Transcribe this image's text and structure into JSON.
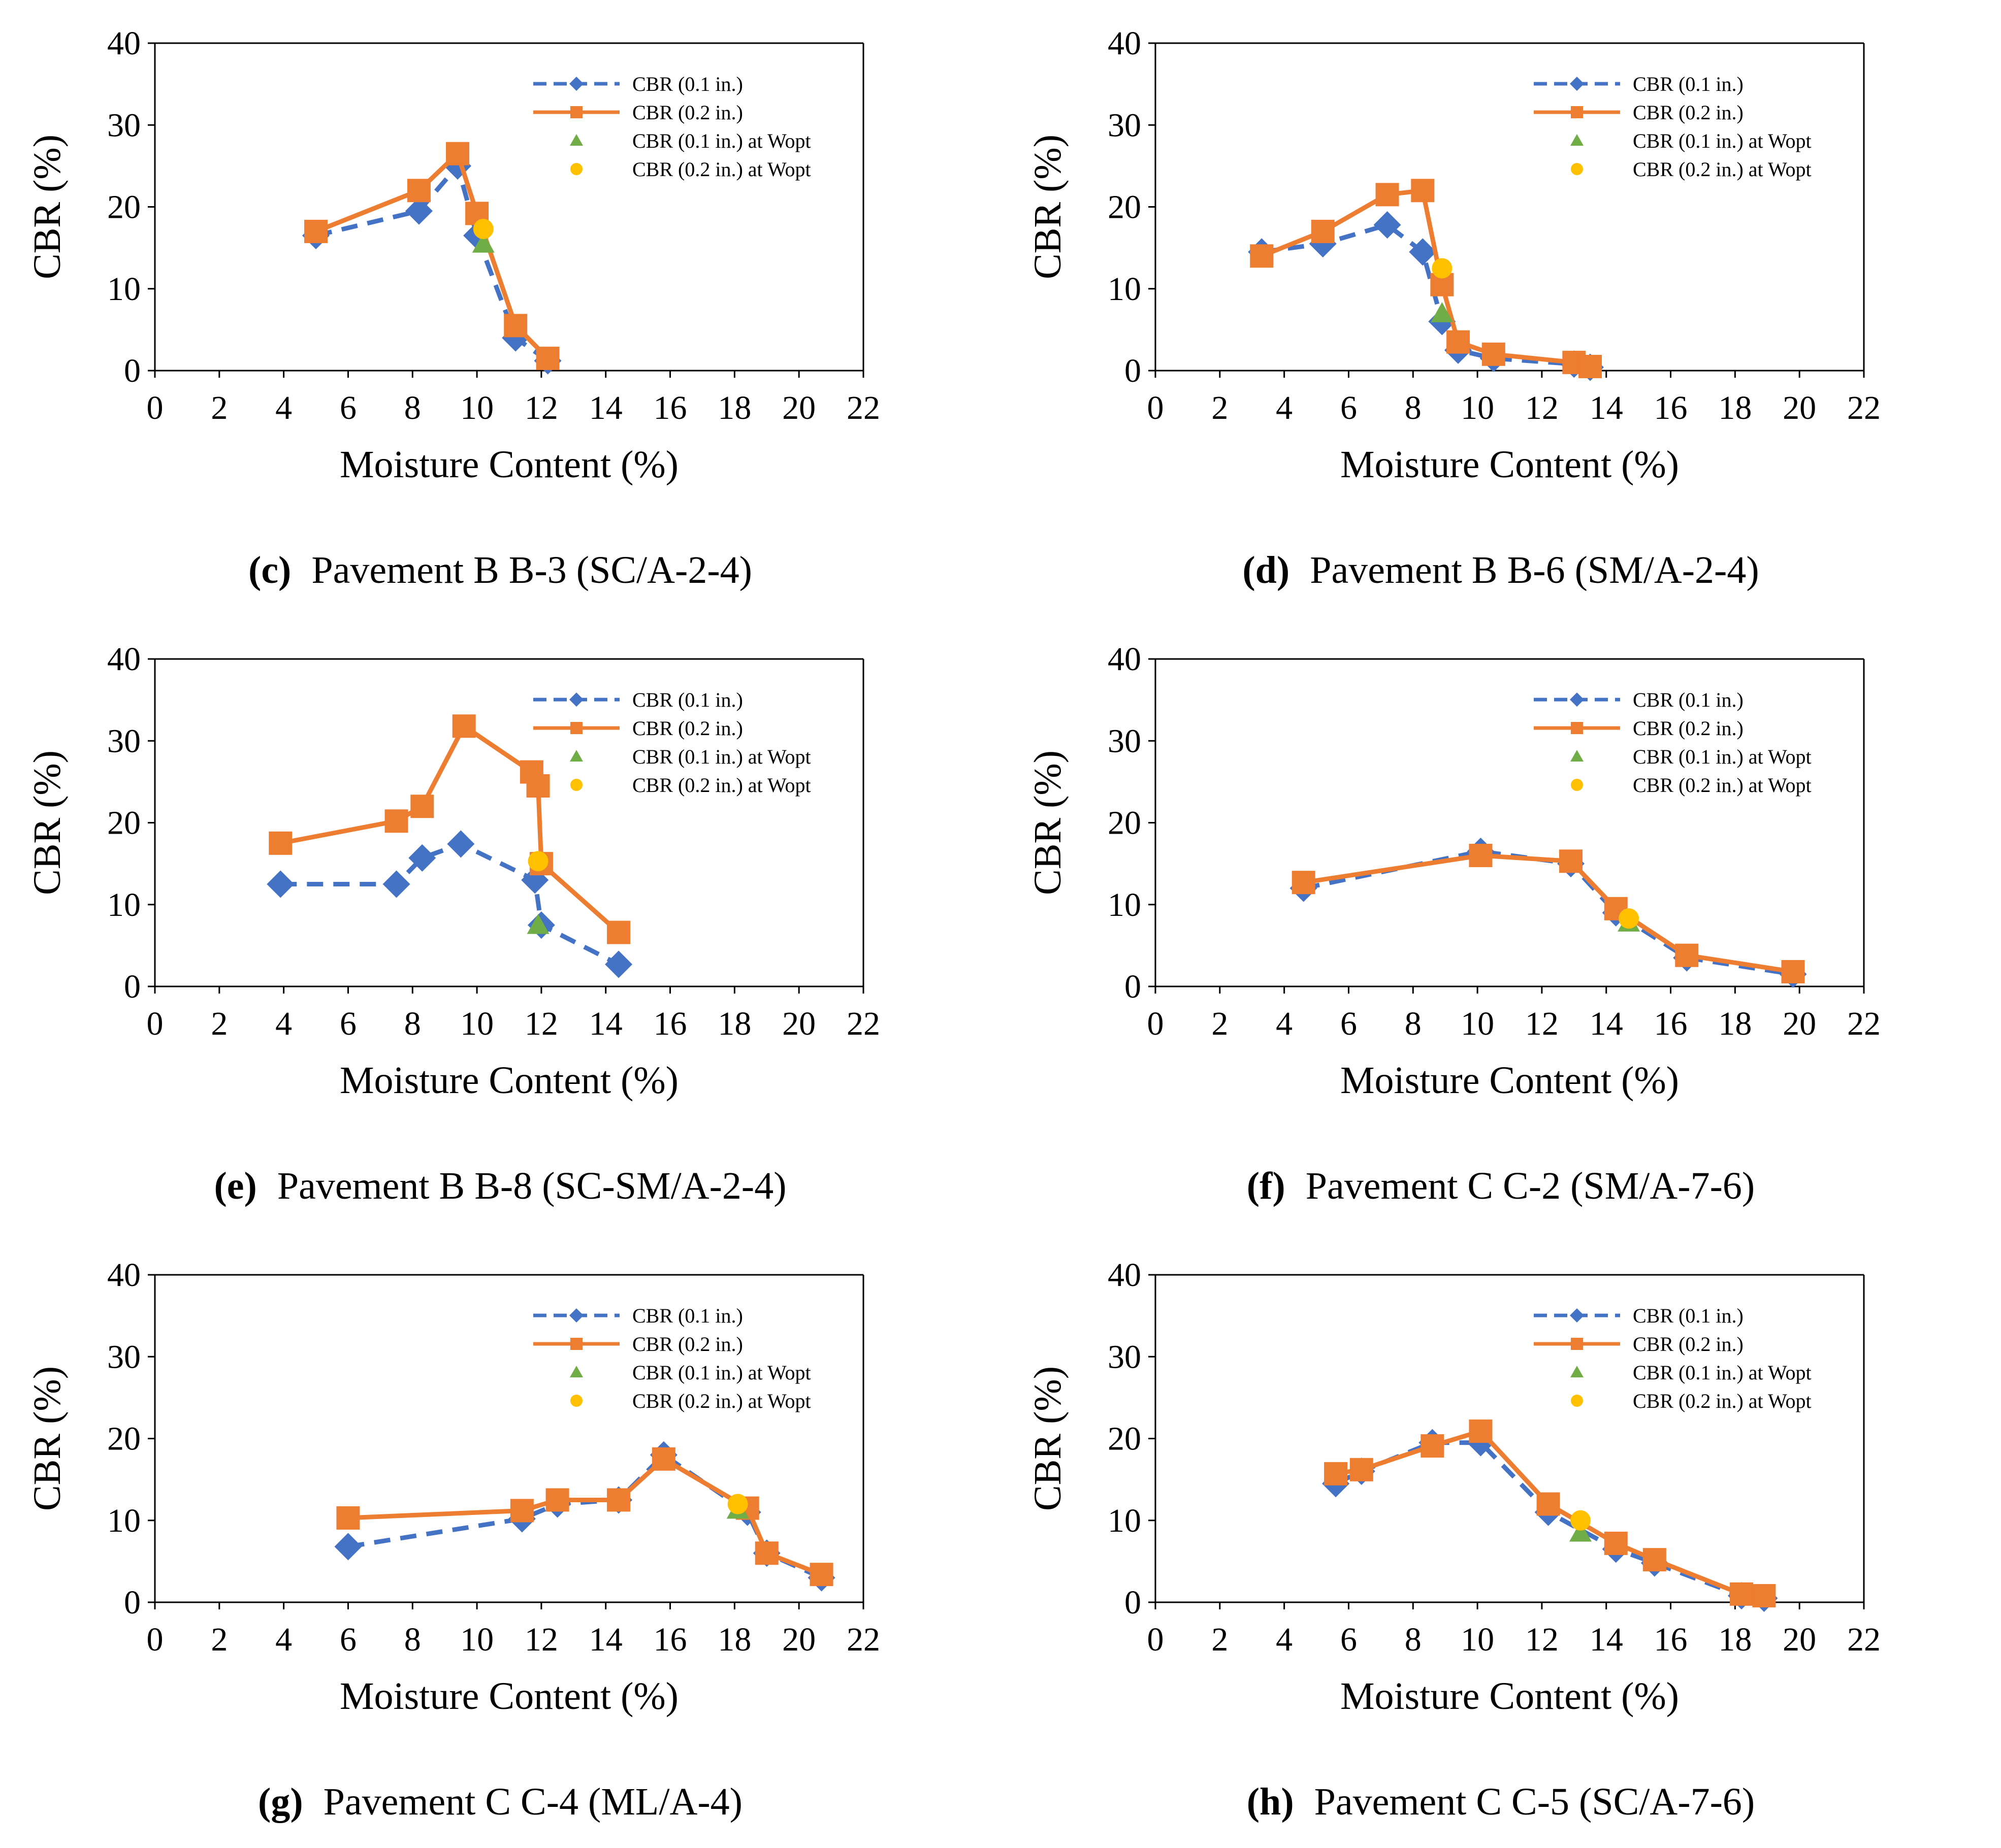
{
  "axis_common": {
    "xlabel": "Moisture Content (%)",
    "ylabel": "CBR (%)",
    "xticks": [
      "0",
      "2",
      "4",
      "6",
      "8",
      "10",
      "12",
      "14",
      "16",
      "18",
      "20",
      "22"
    ],
    "yticks": [
      "0",
      "10",
      "20",
      "30",
      "40"
    ]
  },
  "legend": {
    "cbr01": "CBR (0.1 in.)",
    "cbr02": "CBR (0.2 in.)",
    "cbr01_wopt": "CBR (0.1 in.) at Wopt",
    "cbr02_wopt": "CBR (0.2 in.) at Wopt"
  },
  "colors": {
    "cbr01": "#4472C4",
    "cbr02": "#ED7D31",
    "cbr01_wopt": "#70AD47",
    "cbr02_wopt": "#FFC000"
  },
  "chart_data": [
    {
      "type": "line",
      "tag": "(c)",
      "title": "Pavement B B-3 (SC/A-2-4)",
      "xlabel": "Moisture Content (%)",
      "ylabel": "CBR (%)",
      "xlim": [
        0,
        22
      ],
      "ylim": [
        0,
        40
      ],
      "series": [
        {
          "name": "CBR (0.1 in.)",
          "x": [
            5.0,
            8.2,
            9.4,
            10.0,
            11.2,
            12.2
          ],
          "y": [
            16.5,
            19.5,
            25.0,
            16.5,
            4.0,
            1.2
          ]
        },
        {
          "name": "CBR (0.2 in.)",
          "x": [
            5.0,
            8.2,
            9.4,
            10.0,
            11.2,
            12.2
          ],
          "y": [
            17.0,
            22.0,
            26.5,
            19.2,
            5.5,
            1.5
          ]
        },
        {
          "name": "CBR (0.1 in.) at Wopt",
          "x": [
            10.2
          ],
          "y": [
            15.5
          ]
        },
        {
          "name": "CBR (0.2 in.) at Wopt",
          "x": [
            10.2
          ],
          "y": [
            17.3
          ]
        }
      ]
    },
    {
      "type": "line",
      "tag": "(d)",
      "title": "Pavement B B-6 (SM/A-2-4)",
      "xlabel": "Moisture Content (%)",
      "ylabel": "CBR (%)",
      "xlim": [
        0,
        22
      ],
      "ylim": [
        0,
        40
      ],
      "series": [
        {
          "name": "CBR (0.1 in.)",
          "x": [
            3.3,
            5.2,
            7.2,
            8.3,
            8.9,
            9.4,
            10.5,
            13.0,
            13.5
          ],
          "y": [
            14.5,
            15.5,
            17.8,
            14.5,
            6.0,
            2.5,
            1.5,
            0.8,
            0.4
          ]
        },
        {
          "name": "CBR (0.2 in.)",
          "x": [
            3.3,
            5.2,
            7.2,
            8.3,
            8.9,
            9.4,
            10.5,
            13.0,
            13.5
          ],
          "y": [
            14.0,
            17.0,
            21.5,
            22.0,
            10.5,
            3.5,
            2.0,
            1.0,
            0.5
          ]
        },
        {
          "name": "CBR (0.1 in.) at Wopt",
          "x": [
            8.9
          ],
          "y": [
            7.0
          ]
        },
        {
          "name": "CBR (0.2 in.) at Wopt",
          "x": [
            8.9
          ],
          "y": [
            12.5
          ]
        }
      ]
    },
    {
      "type": "line",
      "tag": "(e)",
      "title": "Pavement B B-8 (SC-SM/A-2-4)",
      "xlabel": "Moisture Content (%)",
      "ylabel": "CBR (%)",
      "xlim": [
        0,
        22
      ],
      "ylim": [
        0,
        40
      ],
      "series": [
        {
          "name": "CBR (0.1 in.)",
          "x": [
            3.9,
            7.5,
            8.3,
            9.5,
            11.8,
            12.0,
            14.4
          ],
          "y": [
            12.5,
            12.5,
            15.7,
            17.4,
            13.0,
            7.5,
            2.7
          ]
        },
        {
          "name": "CBR (0.2 in.)",
          "x": [
            3.9,
            7.5,
            8.3,
            9.6,
            11.7,
            11.9,
            12.0,
            14.4
          ],
          "y": [
            17.5,
            20.2,
            22.0,
            31.8,
            26.2,
            24.5,
            15.0,
            6.6
          ]
        },
        {
          "name": "CBR (0.1 in.) at Wopt",
          "x": [
            11.9
          ],
          "y": [
            7.5
          ]
        },
        {
          "name": "CBR (0.2 in.) at Wopt",
          "x": [
            11.9
          ],
          "y": [
            15.3
          ]
        }
      ]
    },
    {
      "type": "line",
      "tag": "(f)",
      "title": "Pavement C C-2 (SM/A-7-6)",
      "xlabel": "Moisture Content (%)",
      "ylabel": "CBR (%)",
      "xlim": [
        0,
        22
      ],
      "ylim": [
        0,
        40
      ],
      "series": [
        {
          "name": "CBR (0.1 in.)",
          "x": [
            4.6,
            10.1,
            12.9,
            14.3,
            16.5,
            19.8
          ],
          "y": [
            12.0,
            16.5,
            15.0,
            9.0,
            3.5,
            1.5
          ]
        },
        {
          "name": "CBR (0.2 in.)",
          "x": [
            4.6,
            10.1,
            12.9,
            14.3,
            16.5,
            19.8
          ],
          "y": [
            12.7,
            16.0,
            15.3,
            9.5,
            3.8,
            1.8
          ]
        },
        {
          "name": "CBR (0.1 in.) at Wopt",
          "x": [
            14.7
          ],
          "y": [
            7.8
          ]
        },
        {
          "name": "CBR (0.2 in.) at Wopt",
          "x": [
            14.7
          ],
          "y": [
            8.3
          ]
        }
      ]
    },
    {
      "type": "line",
      "tag": "(g)",
      "title": "Pavement C C-4 (ML/A-4)",
      "xlabel": "Moisture Content (%)",
      "ylabel": "CBR (%)",
      "xlim": [
        0,
        22
      ],
      "ylim": [
        0,
        40
      ],
      "series": [
        {
          "name": "CBR (0.1 in.)",
          "x": [
            6.0,
            11.4,
            12.5,
            14.4,
            15.8,
            18.4,
            19.0,
            20.7
          ],
          "y": [
            6.8,
            10.2,
            12.0,
            12.5,
            18.0,
            11.0,
            6.0,
            3.0
          ]
        },
        {
          "name": "CBR (0.2 in.)",
          "x": [
            6.0,
            11.4,
            12.5,
            14.4,
            15.8,
            18.4,
            19.0,
            20.7
          ],
          "y": [
            10.3,
            11.2,
            12.5,
            12.5,
            17.5,
            11.5,
            6.0,
            3.4
          ]
        },
        {
          "name": "CBR (0.1 in.) at Wopt",
          "x": [
            18.1
          ],
          "y": [
            11.3
          ]
        },
        {
          "name": "CBR (0.2 in.) at Wopt",
          "x": [
            18.1
          ],
          "y": [
            12.0
          ]
        }
      ]
    },
    {
      "type": "line",
      "tag": "(h)",
      "title": "Pavement C C-5 (SC/A-7-6)",
      "xlabel": "Moisture Content (%)",
      "ylabel": "CBR (%)",
      "xlim": [
        0,
        22
      ],
      "ylim": [
        0,
        40
      ],
      "series": [
        {
          "name": "CBR (0.1 in.)",
          "x": [
            5.6,
            6.4,
            8.6,
            10.1,
            12.2,
            14.3,
            15.5,
            18.2,
            18.9
          ],
          "y": [
            14.5,
            16.0,
            19.5,
            19.5,
            11.0,
            6.5,
            4.8,
            0.8,
            0.5
          ]
        },
        {
          "name": "CBR (0.2 in.)",
          "x": [
            5.6,
            6.4,
            8.6,
            10.1,
            12.2,
            14.3,
            15.5,
            18.2,
            18.9
          ],
          "y": [
            15.7,
            16.2,
            19.1,
            20.9,
            12.0,
            7.2,
            5.2,
            1.0,
            0.8
          ]
        },
        {
          "name": "CBR (0.1 in.) at Wopt",
          "x": [
            13.2
          ],
          "y": [
            8.5
          ]
        },
        {
          "name": "CBR (0.2 in.) at Wopt",
          "x": [
            13.2
          ],
          "y": [
            10.0
          ]
        }
      ]
    }
  ]
}
